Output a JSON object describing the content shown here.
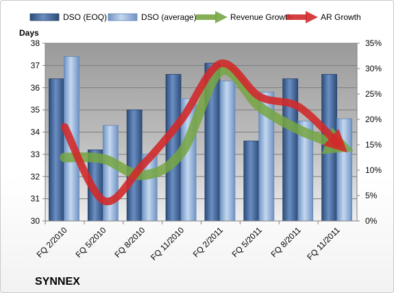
{
  "chart_data": {
    "type": "bar",
    "title": "SYNNEX",
    "ylabel": "Days",
    "categories": [
      "FQ 2/2010",
      "FQ 5/2010",
      "FQ 8/2010",
      "FQ 11/2010",
      "FQ 2/2011",
      "FQ 5/2011",
      "FQ 8/2011",
      "FQ 11/2011"
    ],
    "ylim": [
      30,
      38
    ],
    "y_ticks": [
      "30",
      "31",
      "32",
      "33",
      "34",
      "35",
      "36",
      "37",
      "38"
    ],
    "y2lim": [
      0,
      35
    ],
    "y2_ticks": [
      "0%",
      "5%",
      "10%",
      "15%",
      "20%",
      "25%",
      "30%",
      "35%"
    ],
    "legend_position": "top",
    "grid": true,
    "series": [
      {
        "name": "DSO (EOQ)",
        "type": "bar",
        "color": "#4a6fa5",
        "values": [
          36.4,
          33.2,
          35.0,
          36.6,
          37.1,
          33.6,
          36.4,
          36.6
        ]
      },
      {
        "name": "DSO (average)",
        "type": "bar",
        "color": "#93b3dc",
        "values": [
          37.4,
          34.3,
          33.0,
          35.5,
          36.3,
          35.8,
          34.5,
          34.6
        ]
      },
      {
        "name": "Revenue Growth",
        "type": "line",
        "axis": "right",
        "color": "#77a642",
        "values": [
          12.5,
          12.2,
          9.0,
          13.5,
          29.5,
          22.5,
          18.0,
          15.0
        ]
      },
      {
        "name": "AR Growth",
        "type": "line",
        "axis": "right",
        "color": "#d02a2a",
        "values": [
          18.5,
          4.0,
          11.0,
          20.0,
          31.0,
          24.5,
          22.5,
          15.3
        ]
      }
    ]
  }
}
